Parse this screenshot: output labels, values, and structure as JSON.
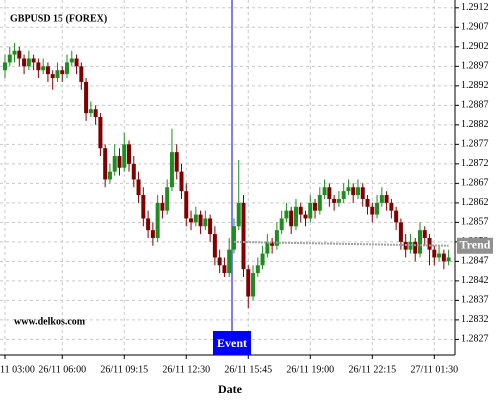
{
  "chart_data": {
    "type": "candlestick",
    "title": "GBPUSD 15 (FOREX)",
    "watermark": "www.delkos.com",
    "x_label": "Date",
    "event_label": "Event",
    "categories": [
      "11 03:00",
      null,
      null,
      null,
      null,
      null,
      null,
      null,
      null,
      null,
      null,
      null,
      "26/11 06:00",
      null,
      null,
      null,
      null,
      null,
      null,
      null,
      null,
      null,
      null,
      null,
      null,
      "26/11 09:15",
      null,
      null,
      null,
      null,
      null,
      null,
      null,
      null,
      null,
      null,
      null,
      null,
      "26/11 12:30",
      null,
      null,
      null,
      null,
      null,
      null,
      null,
      null,
      null,
      null,
      null,
      null,
      "26/11 15:45",
      null,
      null,
      null,
      null,
      null,
      null,
      null,
      null,
      null,
      null,
      null,
      null,
      "26/11 19:00",
      null,
      null,
      null,
      null,
      null,
      null,
      null,
      null,
      null,
      null,
      null,
      null,
      "26/11 22:15",
      null,
      null,
      null,
      null,
      null,
      null,
      null,
      null,
      null,
      null,
      null,
      null,
      "27/11 01:30",
      null,
      null,
      null
    ],
    "ohlc": [
      [
        1.2896,
        1.29,
        1.2894,
        1.2898
      ],
      [
        1.2898,
        1.2902,
        1.2897,
        1.29
      ],
      [
        1.29,
        1.2903,
        1.2898,
        1.2901
      ],
      [
        1.2901,
        1.2902,
        1.2897,
        1.2899
      ],
      [
        1.2899,
        1.29,
        1.2895,
        1.2897
      ],
      [
        1.2897,
        1.2901,
        1.2896,
        1.2899
      ],
      [
        1.2899,
        1.29,
        1.2896,
        1.2898
      ],
      [
        1.2898,
        1.2899,
        1.2894,
        1.2896
      ],
      [
        1.2896,
        1.2899,
        1.2895,
        1.2897
      ],
      [
        1.2897,
        1.2898,
        1.2893,
        1.2895
      ],
      [
        1.2895,
        1.2896,
        1.2891,
        1.2894
      ],
      [
        1.2894,
        1.2898,
        1.2893,
        1.2896
      ],
      [
        1.2896,
        1.2897,
        1.2893,
        1.2895
      ],
      [
        1.2895,
        1.29,
        1.2894,
        1.2898
      ],
      [
        1.2898,
        1.2901,
        1.2897,
        1.2899
      ],
      [
        1.2899,
        1.29,
        1.2895,
        1.2897
      ],
      [
        1.2897,
        1.2898,
        1.2891,
        1.2893
      ],
      [
        1.2893,
        1.2894,
        1.2883,
        1.2885
      ],
      [
        1.2885,
        1.2888,
        1.2884,
        1.2886
      ],
      [
        1.2886,
        1.2887,
        1.2882,
        1.2884
      ],
      [
        1.2884,
        1.2885,
        1.2874,
        1.2876
      ],
      [
        1.2876,
        1.2877,
        1.2866,
        1.2868
      ],
      [
        1.2868,
        1.2872,
        1.2867,
        1.287
      ],
      [
        1.287,
        1.2877,
        1.2869,
        1.2874
      ],
      [
        1.2874,
        1.2876,
        1.2869,
        1.2871
      ],
      [
        1.2871,
        1.288,
        1.287,
        1.2877
      ],
      [
        1.2877,
        1.2878,
        1.287,
        1.2872
      ],
      [
        1.2872,
        1.2874,
        1.2866,
        1.2868
      ],
      [
        1.2868,
        1.287,
        1.2862,
        1.2864
      ],
      [
        1.2864,
        1.2866,
        1.2856,
        1.2858
      ],
      [
        1.2858,
        1.286,
        1.2853,
        1.2855
      ],
      [
        1.2855,
        1.2857,
        1.2851,
        1.2853
      ],
      [
        1.2853,
        1.2864,
        1.2852,
        1.2862
      ],
      [
        1.2862,
        1.2864,
        1.2858,
        1.286
      ],
      [
        1.286,
        1.2868,
        1.2859,
        1.2866
      ],
      [
        1.2866,
        1.2881,
        1.2865,
        1.2875
      ],
      [
        1.2875,
        1.2877,
        1.2868,
        1.287
      ],
      [
        1.287,
        1.2872,
        1.2863,
        1.2865
      ],
      [
        1.2865,
        1.2867,
        1.2856,
        1.2858
      ],
      [
        1.2858,
        1.286,
        1.2855,
        1.2857
      ],
      [
        1.2857,
        1.2861,
        1.2856,
        1.2859
      ],
      [
        1.2859,
        1.286,
        1.2854,
        1.2856
      ],
      [
        1.2856,
        1.286,
        1.2855,
        1.2858
      ],
      [
        1.2858,
        1.2859,
        1.2852,
        1.2854
      ],
      [
        1.2854,
        1.2856,
        1.2846,
        1.2848
      ],
      [
        1.2848,
        1.285,
        1.2844,
        1.2846
      ],
      [
        1.2846,
        1.2848,
        1.2843,
        1.2844
      ],
      [
        1.2844,
        1.2853,
        1.2843,
        1.285
      ],
      [
        1.285,
        1.2858,
        1.2849,
        1.2856
      ],
      [
        1.2856,
        1.2873,
        1.2855,
        1.2862
      ],
      [
        1.2862,
        1.2864,
        1.2843,
        1.2845
      ],
      [
        1.2845,
        1.2846,
        1.2835,
        1.2838
      ],
      [
        1.2838,
        1.2846,
        1.2837,
        1.2844
      ],
      [
        1.2844,
        1.2848,
        1.2843,
        1.2846
      ],
      [
        1.2846,
        1.2851,
        1.2845,
        1.2849
      ],
      [
        1.2849,
        1.2854,
        1.2848,
        1.2852
      ],
      [
        1.2852,
        1.2853,
        1.2849,
        1.2851
      ],
      [
        1.2851,
        1.2857,
        1.285,
        1.2855
      ],
      [
        1.2855,
        1.286,
        1.2854,
        1.2858
      ],
      [
        1.2858,
        1.2862,
        1.2857,
        1.286
      ],
      [
        1.286,
        1.2861,
        1.2854,
        1.2856
      ],
      [
        1.2856,
        1.2863,
        1.2855,
        1.2861
      ],
      [
        1.2861,
        1.2862,
        1.2857,
        1.2859
      ],
      [
        1.2859,
        1.286,
        1.2856,
        1.2858
      ],
      [
        1.2858,
        1.2864,
        1.2857,
        1.2862
      ],
      [
        1.2862,
        1.2863,
        1.2858,
        1.286
      ],
      [
        1.286,
        1.2866,
        1.2859,
        1.2864
      ],
      [
        1.2864,
        1.2868,
        1.2863,
        1.2866
      ],
      [
        1.2866,
        1.2867,
        1.2861,
        1.2863
      ],
      [
        1.2863,
        1.2864,
        1.286,
        1.2862
      ],
      [
        1.2862,
        1.2865,
        1.2861,
        1.2863
      ],
      [
        1.2863,
        1.2867,
        1.2862,
        1.2865
      ],
      [
        1.2865,
        1.2868,
        1.2864,
        1.2866
      ],
      [
        1.2866,
        1.2867,
        1.2862,
        1.2864
      ],
      [
        1.2864,
        1.2868,
        1.2863,
        1.2866
      ],
      [
        1.2866,
        1.2867,
        1.2861,
        1.2863
      ],
      [
        1.2863,
        1.2864,
        1.2859,
        1.2861
      ],
      [
        1.2861,
        1.2862,
        1.2857,
        1.2859
      ],
      [
        1.2859,
        1.2864,
        1.2858,
        1.2862
      ],
      [
        1.2862,
        1.2866,
        1.2861,
        1.2864
      ],
      [
        1.2864,
        1.2865,
        1.286,
        1.2862
      ],
      [
        1.2862,
        1.2863,
        1.2858,
        1.286
      ],
      [
        1.286,
        1.2861,
        1.2855,
        1.2857
      ],
      [
        1.2857,
        1.2858,
        1.285,
        1.2852
      ],
      [
        1.2852,
        1.2854,
        1.2848,
        1.285
      ],
      [
        1.285,
        1.2854,
        1.2849,
        1.2852
      ],
      [
        1.2852,
        1.2853,
        1.2847,
        1.2849
      ],
      [
        1.2849,
        1.2857,
        1.2848,
        1.2855
      ],
      [
        1.2855,
        1.2856,
        1.2851,
        1.2853
      ],
      [
        1.2853,
        1.2854,
        1.2846,
        1.285
      ],
      [
        1.285,
        1.2851,
        1.2846,
        1.2848
      ],
      [
        1.2848,
        1.2851,
        1.2847,
        1.2849
      ],
      [
        1.2849,
        1.285,
        1.2845,
        1.2847
      ],
      [
        1.2847,
        1.285,
        1.2846,
        1.2848
      ]
    ],
    "up_color": "#1e8c1e",
    "down_color": "#800000",
    "trend": {
      "name": "Trend",
      "x": [
        48,
        93
      ],
      "values": [
        1.2852,
        1.2851
      ],
      "color": "#a0a0a0"
    },
    "ylim": [
      1.2823,
      1.2914
    ],
    "yticks": [
      1.2827,
      1.2832,
      1.2837,
      1.2842,
      1.2847,
      1.2852,
      1.2857,
      1.2862,
      1.2867,
      1.2872,
      1.2877,
      1.2882,
      1.2887,
      1.2892,
      1.2897,
      1.2902,
      1.2907,
      1.2912
    ],
    "grid": true
  }
}
